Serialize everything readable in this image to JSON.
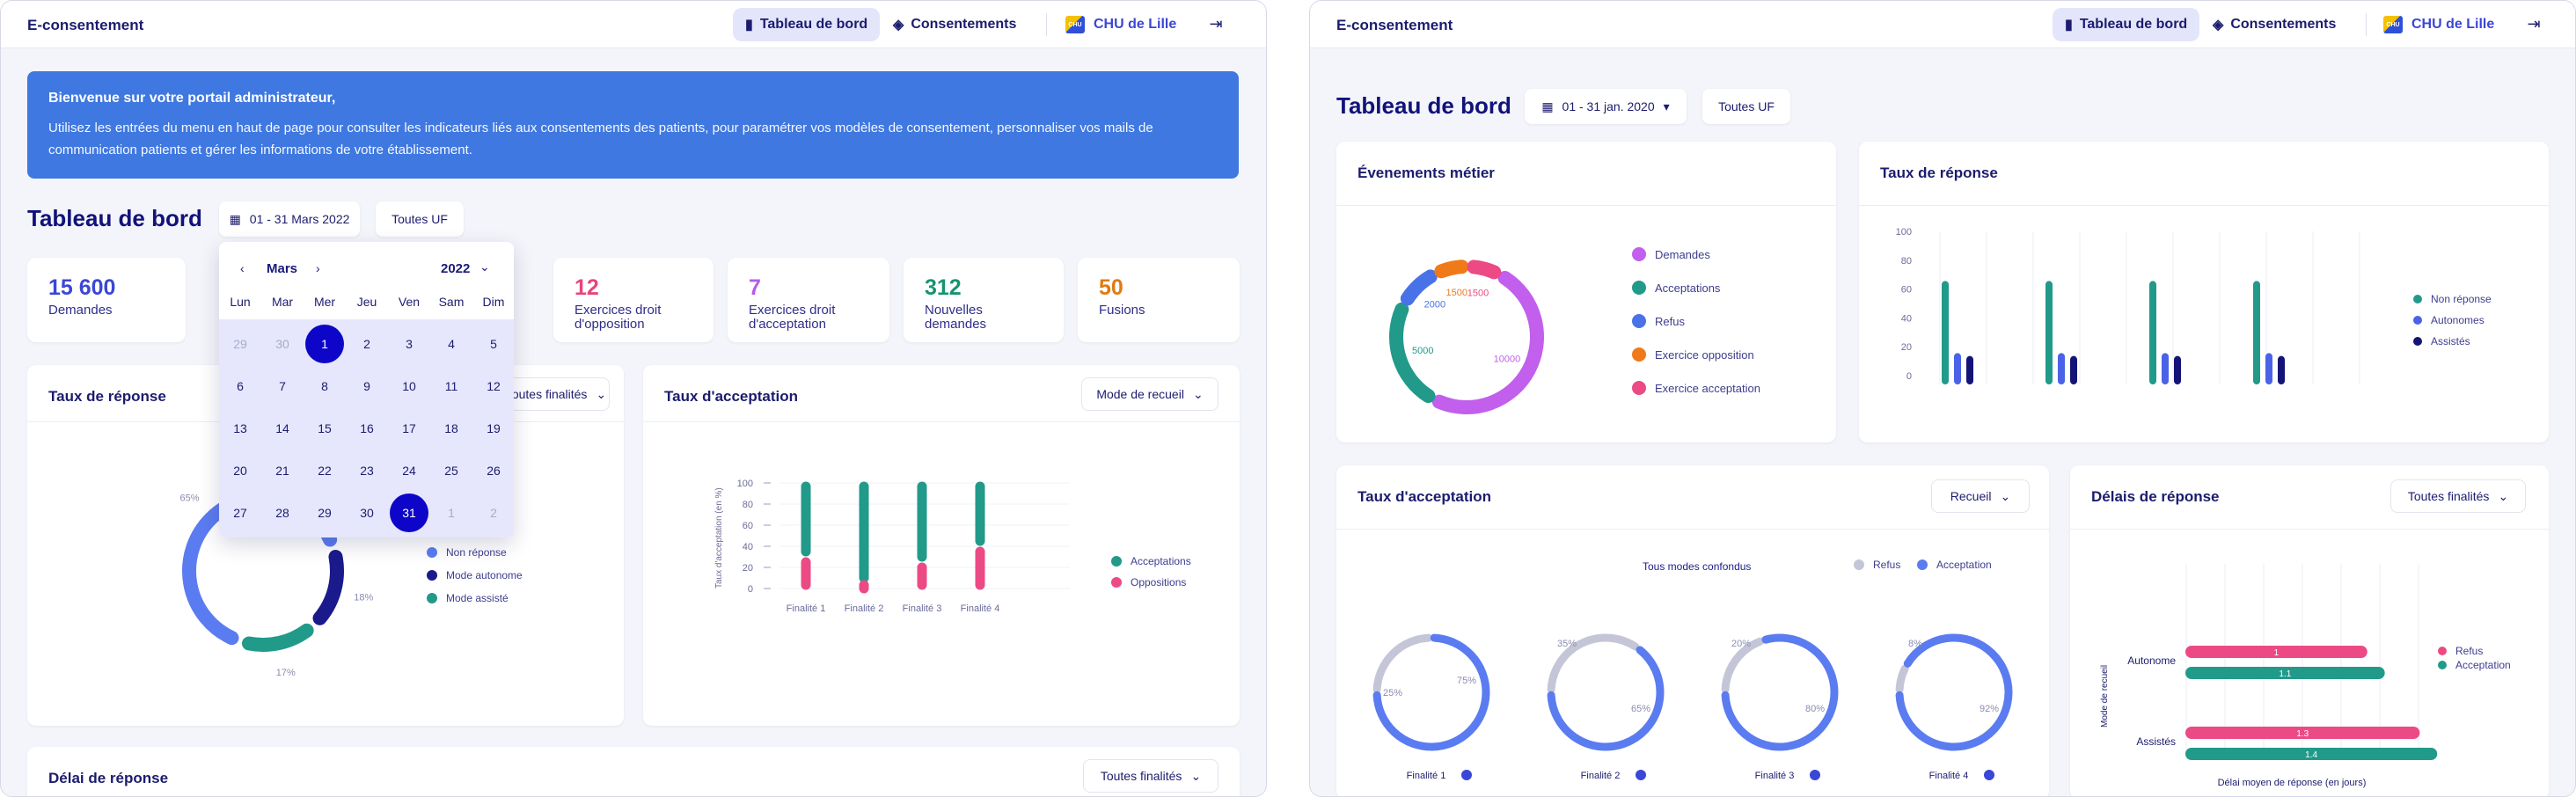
{
  "left": {
    "brand": "E-consentement",
    "nav": {
      "dashboard": "Tableau de bord",
      "consents": "Consentements",
      "org": "CHU de Lille",
      "logo_text": "CHU"
    },
    "banner": {
      "title": "Bienvenue sur votre portail administrateur,",
      "line1": "Utilisez les entrées du menu en haut de page pour consulter les indicateurs liés aux consentements des patients, pour paramétrer vos modèles de consentement, personnaliser vos mails de",
      "line2": "communication patients et gérer les informations de votre établissement."
    },
    "page_title": "Tableau de bord",
    "date_range": "01 - 31 Mars 2022",
    "unit_filter": "Toutes UF",
    "calendar": {
      "month": "Mars",
      "year": "2022",
      "weekdays": [
        "Lun",
        "Mar",
        "Mer",
        "Jeu",
        "Ven",
        "Sam",
        "Dim"
      ],
      "rows": [
        [
          "29",
          "30",
          "1",
          "2",
          "3",
          "4",
          "5"
        ],
        [
          "6",
          "7",
          "8",
          "9",
          "10",
          "11",
          "12"
        ],
        [
          "13",
          "14",
          "15",
          "16",
          "17",
          "18",
          "19"
        ],
        [
          "20",
          "21",
          "22",
          "23",
          "24",
          "25",
          "26"
        ],
        [
          "27",
          "28",
          "29",
          "30",
          "31",
          "1",
          "2"
        ]
      ]
    },
    "stats": [
      {
        "value": "15 600",
        "label1": "Demandes",
        "label2": "",
        "color": "#3b47d6"
      },
      {
        "value": "12",
        "label1": "Exercices droit",
        "label2": "d'opposition",
        "color": "#e8457a"
      },
      {
        "value": "7",
        "label1": "Exercices droit",
        "label2": "d'acceptation",
        "color": "#b55be8"
      },
      {
        "value": "312",
        "label1": "Nouvelles",
        "label2": "demandes",
        "color": "#16946e"
      },
      {
        "value": "50",
        "label1": "Fusions",
        "label2": "",
        "color": "#e07a12"
      }
    ],
    "response_rate": {
      "title": "Taux de réponse",
      "filter": "Toutes finalités",
      "chart_data": {
        "type": "pie",
        "labels": [
          "Non réponse",
          "Mode autonome",
          "Mode assisté"
        ],
        "values": [
          65,
          18,
          17
        ],
        "display": [
          "65%",
          "18%",
          "17%"
        ],
        "colors": [
          "#5b7cf0",
          "#1a1a8c",
          "#219a8a"
        ]
      }
    },
    "acceptance_rate": {
      "title": "Taux d'acceptation",
      "filter": "Mode de recueil",
      "chart_data": {
        "type": "bar",
        "categories": [
          "Finalité 1",
          "Finalité 2",
          "Finalité 3",
          "Finalité 4"
        ],
        "series": [
          {
            "name": "Acceptations",
            "values": [
              70,
              95,
              75,
              60
            ],
            "color": "#219a8a"
          },
          {
            "name": "Oppositions",
            "values": [
              30,
              5,
              25,
              40
            ],
            "color": "#ec4a84"
          }
        ],
        "ylabel": "Taux d'acceptation (en %)",
        "yticks": [
          "100",
          "80",
          "60",
          "40",
          "20",
          "0"
        ],
        "ylim": [
          0,
          100
        ]
      }
    },
    "response_delay": {
      "title": "Délai de réponse",
      "filter": "Toutes finalités"
    }
  },
  "right": {
    "brand": "E-consentement",
    "nav": {
      "dashboard": "Tableau de bord",
      "consents": "Consentements",
      "org": "CHU de Lille",
      "logo_text": "CHU"
    },
    "page_title": "Tableau de bord",
    "date_range": "01 - 31 jan. 2020",
    "unit_filter": "Toutes UF",
    "events": {
      "title": "Évenements métier",
      "chart_data": {
        "type": "pie",
        "labels": [
          "Demandes",
          "Acceptations",
          "Refus",
          "Exercice opposition",
          "Exercice acceptation"
        ],
        "values": [
          10000,
          5000,
          2000,
          1500,
          1500
        ],
        "display": [
          "10000",
          "5000",
          "2000",
          "1500",
          "1500"
        ],
        "colors": [
          "#c25fec",
          "#219a8a",
          "#4a72e8",
          "#f07a1a",
          "#ec4a84"
        ]
      }
    },
    "response_rate": {
      "title": "Taux de réponse",
      "chart_data": {
        "type": "bar",
        "categories": [
          "",
          "",
          "",
          ""
        ],
        "series": [
          {
            "name": "Non réponse",
            "values": [
              65,
              65,
              65,
              65
            ],
            "color": "#219a8a"
          },
          {
            "name": "Autonomes",
            "values": [
              15,
              15,
              15,
              15
            ],
            "color": "#4a62e8"
          },
          {
            "name": "Assistés",
            "values": [
              13,
              13,
              13,
              13
            ],
            "color": "#141478"
          }
        ],
        "yticks": [
          "100",
          "80",
          "60",
          "40",
          "20",
          "0"
        ],
        "ylim": [
          0,
          100
        ]
      }
    },
    "acceptance_rate": {
      "title": "Taux d'acceptation",
      "filter": "Recueil",
      "subtitle": "Tous modes confondus",
      "chart_data": {
        "type": "pie",
        "series_names": [
          "Refus",
          "Acceptation"
        ],
        "items": [
          {
            "label": "Finalité 1",
            "refus": 25,
            "acceptation": 75,
            "r": "25%",
            "a": "75%"
          },
          {
            "label": "Finalité 2",
            "refus": 35,
            "acceptation": 65,
            "r": "35%",
            "a": "65%"
          },
          {
            "label": "Finalité 3",
            "refus": 20,
            "acceptation": 80,
            "r": "20%",
            "a": "80%"
          },
          {
            "label": "Finalité 4",
            "refus": 8,
            "acceptation": 92,
            "r": "8%",
            "a": "92%"
          }
        ],
        "colors": {
          "refus": "#c4c6d8",
          "acceptation": "#5b7cf0"
        }
      }
    },
    "response_delay": {
      "title": "Délais de réponse",
      "filter": "Toutes finalités",
      "chart_data": {
        "type": "bar",
        "orientation": "horizontal",
        "categories": [
          "Autonome",
          "Assistés"
        ],
        "series": [
          {
            "name": "Refus",
            "values": [
              1,
              1.3
            ],
            "labels": [
              "1",
              "1.3"
            ],
            "color": "#ec4a84"
          },
          {
            "name": "Acceptation",
            "values": [
              1.1,
              1.4
            ],
            "labels": [
              "1.1",
              "1.4"
            ],
            "color": "#219a8a"
          }
        ],
        "xlabel": "Délai moyen de réponse (en jours)",
        "ylabel": "Mode de recueil",
        "xlim": [
          0,
          2.4
        ]
      }
    }
  }
}
